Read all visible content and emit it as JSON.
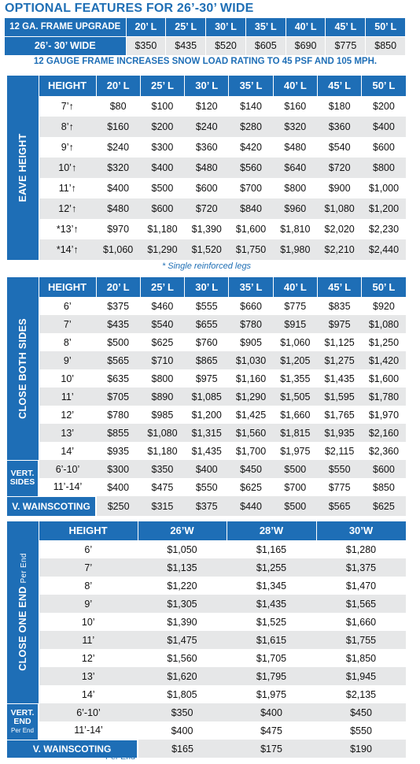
{
  "title": "OPTIONAL FEATURES FOR 26’-30’ WIDE",
  "upgrade": {
    "label": "12 GA. FRAME UPGRADE",
    "lengths": [
      "20’ L",
      "25’ L",
      "30’ L",
      "35’ L",
      "40’ L",
      "45’ L",
      "50’ L"
    ],
    "row_label": "26’- 30’ WIDE",
    "prices": [
      "$350",
      "$435",
      "$520",
      "$605",
      "$690",
      "$775",
      "$850"
    ],
    "note": "12 GAUGE FRAME INCREASES SNOW LOAD RATING TO 45 PSF AND 105 MPH."
  },
  "eave": {
    "side_label": "EAVE HEIGHT",
    "header": [
      "HEIGHT",
      "20’ L",
      "25’ L",
      "30’ L",
      "35’ L",
      "40’ L",
      "45’ L",
      "50’ L"
    ],
    "rows": [
      [
        "7’↑",
        "$80",
        "$100",
        "$120",
        "$140",
        "$160",
        "$180",
        "$200"
      ],
      [
        "8’↑",
        "$160",
        "$200",
        "$240",
        "$280",
        "$320",
        "$360",
        "$400"
      ],
      [
        "9’↑",
        "$240",
        "$300",
        "$360",
        "$420",
        "$480",
        "$540",
        "$600"
      ],
      [
        "10’↑",
        "$320",
        "$400",
        "$480",
        "$560",
        "$640",
        "$720",
        "$800"
      ],
      [
        "11’↑",
        "$400",
        "$500",
        "$600",
        "$700",
        "$800",
        "$900",
        "$1,000"
      ],
      [
        "12’↑",
        "$480",
        "$600",
        "$720",
        "$840",
        "$960",
        "$1,080",
        "$1,200"
      ],
      [
        "*13’↑",
        "$970",
        "$1,180",
        "$1,390",
        "$1,600",
        "$1,810",
        "$2,020",
        "$2,230"
      ],
      [
        "*14’↑",
        "$1,060",
        "$1,290",
        "$1,520",
        "$1,750",
        "$1,980",
        "$2,210",
        "$2,440"
      ]
    ],
    "footnote": "* Single reinforced legs"
  },
  "both": {
    "side_label": "CLOSE BOTH SIDES",
    "header": [
      "HEIGHT",
      "20’ L",
      "25’ L",
      "30’ L",
      "35’ L",
      "40’ L",
      "45’ L",
      "50’ L"
    ],
    "rows": [
      [
        "6’",
        "$375",
        "$460",
        "$555",
        "$660",
        "$775",
        "$835",
        "$920"
      ],
      [
        "7’",
        "$435",
        "$540",
        "$655",
        "$780",
        "$915",
        "$975",
        "$1,080"
      ],
      [
        "8’",
        "$500",
        "$625",
        "$760",
        "$905",
        "$1,060",
        "$1,125",
        "$1,250"
      ],
      [
        "9’",
        "$565",
        "$710",
        "$865",
        "$1,030",
        "$1,205",
        "$1,275",
        "$1,420"
      ],
      [
        "10’",
        "$635",
        "$800",
        "$975",
        "$1,160",
        "$1,355",
        "$1,435",
        "$1,600"
      ],
      [
        "11’",
        "$705",
        "$890",
        "$1,085",
        "$1,290",
        "$1,505",
        "$1,595",
        "$1,780"
      ],
      [
        "12’",
        "$780",
        "$985",
        "$1,200",
        "$1,425",
        "$1,660",
        "$1,765",
        "$1,970"
      ],
      [
        "13’",
        "$855",
        "$1,080",
        "$1,315",
        "$1,560",
        "$1,815",
        "$1,935",
        "$2,160"
      ],
      [
        "14’",
        "$935",
        "$1,180",
        "$1,435",
        "$1,700",
        "$1,975",
        "$2,115",
        "$2,360"
      ]
    ],
    "vert_label_1": "VERT.",
    "vert_label_2": "SIDES",
    "vert_rows": [
      [
        "6’-10’",
        "$300",
        "$350",
        "$400",
        "$450",
        "$500",
        "$550",
        "$600"
      ],
      [
        "11’-14’",
        "$400",
        "$475",
        "$550",
        "$625",
        "$700",
        "$775",
        "$850"
      ]
    ],
    "wainscoting_label": "V. WAINSCOTING",
    "wainscoting": [
      "$250",
      "$315",
      "$375",
      "$440",
      "$500",
      "$565",
      "$625"
    ]
  },
  "end": {
    "side_label": "CLOSE ONE END",
    "side_sub": "Per End",
    "header": [
      "HEIGHT",
      "26’W",
      "28’W",
      "30’W"
    ],
    "rows": [
      [
        "6’",
        "$1,050",
        "$1,165",
        "$1,280"
      ],
      [
        "7’",
        "$1,135",
        "$1,255",
        "$1,375"
      ],
      [
        "8’",
        "$1,220",
        "$1,345",
        "$1,470"
      ],
      [
        "9’",
        "$1,305",
        "$1,435",
        "$1,565"
      ],
      [
        "10’",
        "$1,390",
        "$1,525",
        "$1,660"
      ],
      [
        "11’",
        "$1,475",
        "$1,615",
        "$1,755"
      ],
      [
        "12’",
        "$1,560",
        "$1,705",
        "$1,850"
      ],
      [
        "13’",
        "$1,620",
        "$1,795",
        "$1,945"
      ],
      [
        "14’",
        "$1,805",
        "$1,975",
        "$2,135"
      ]
    ],
    "vert_label_1": "VERT.",
    "vert_label_2": "END",
    "vert_sub": "Per End",
    "vert_rows": [
      [
        "6’-10’",
        "$350",
        "$400",
        "$450"
      ],
      [
        "11’-14’",
        "$400",
        "$475",
        "$550"
      ]
    ],
    "wainscoting_label": "V. WAINSCOTING",
    "wainscoting": [
      "$165",
      "$175",
      "$190"
    ],
    "wainscoting_sub": "Per End"
  },
  "colors": {
    "brand_blue": "#1e6eb6",
    "row_gray": "#e6e7e8"
  }
}
